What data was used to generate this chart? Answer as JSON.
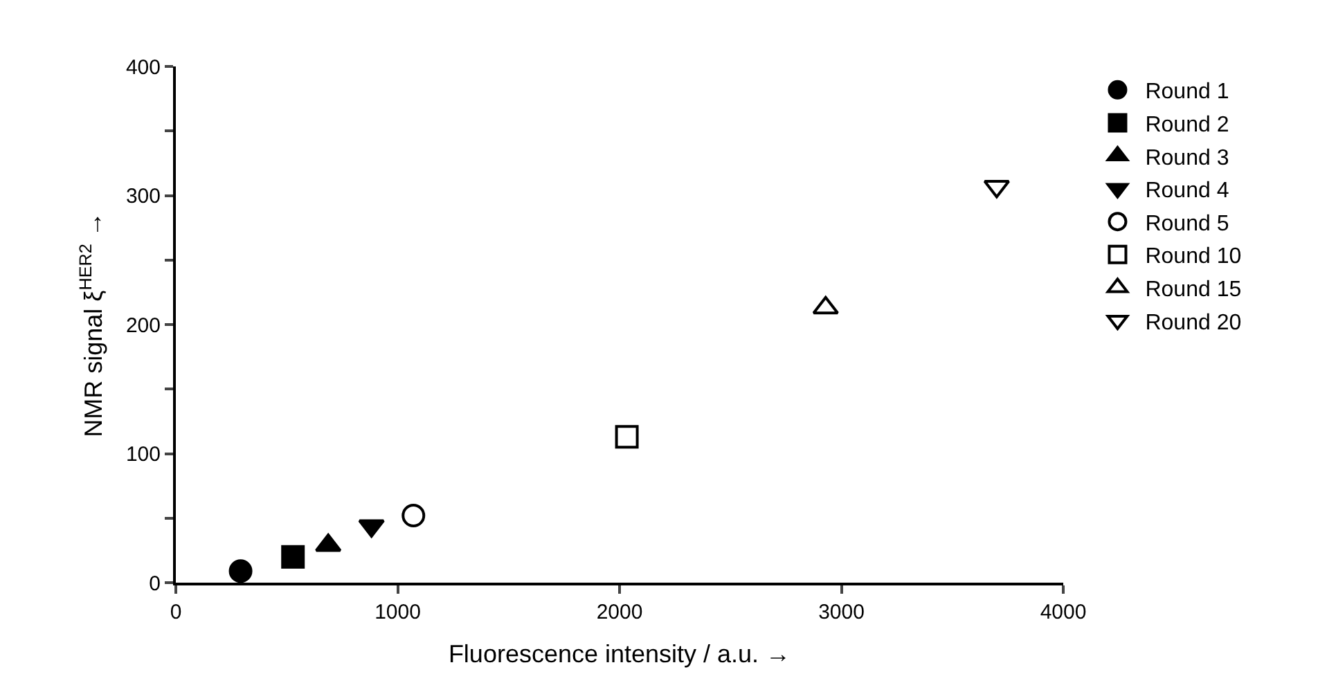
{
  "chart_data": {
    "type": "scatter",
    "xlabel": "Fluorescence intensity / a.u. →",
    "ylabel": "NMR signal ξ$^{HER2}$ →",
    "xlim": [
      0,
      4000
    ],
    "xticks": [
      0,
      1000,
      2000,
      3000,
      4000
    ],
    "ylim": [
      0,
      400
    ],
    "yticks": [
      0,
      {
        "value": 50,
        "label": null
      },
      100,
      {
        "value": 150,
        "label": null
      },
      200,
      {
        "value": 250,
        "label": null
      },
      300,
      {
        "value": 350,
        "label": null
      },
      400
    ],
    "grid": false,
    "legend": "right",
    "series": [
      {
        "name": "Round 1",
        "color": "#000000",
        "marker": "circle",
        "x": [
          292
        ],
        "values": [
          9
        ]
      },
      {
        "name": "Round 2",
        "color": "#000000",
        "marker": "square",
        "x": [
          528
        ],
        "values": [
          20
        ]
      },
      {
        "name": "Round 3",
        "color": "#000000",
        "marker": "triangle",
        "x": [
          687
        ],
        "values": [
          29
        ]
      },
      {
        "name": "Round 4",
        "color": "#000000",
        "marker": "triangle-down",
        "x": [
          882
        ],
        "values": [
          44
        ]
      },
      {
        "name": "Round 5",
        "color": "#000000",
        "marker": "circle-open",
        "x": [
          1071
        ],
        "values": [
          52
        ]
      },
      {
        "name": "Round 10",
        "color": "#000000",
        "marker": "square-open",
        "x": [
          2033
        ],
        "values": [
          113
        ]
      },
      {
        "name": "Round 15",
        "color": "#000000",
        "marker": "triangle-open",
        "x": [
          2929
        ],
        "values": [
          213
        ]
      },
      {
        "name": "Round 20",
        "color": "#000000",
        "marker": "triangle-down-open",
        "x": [
          3700
        ],
        "values": [
          307
        ]
      }
    ]
  }
}
